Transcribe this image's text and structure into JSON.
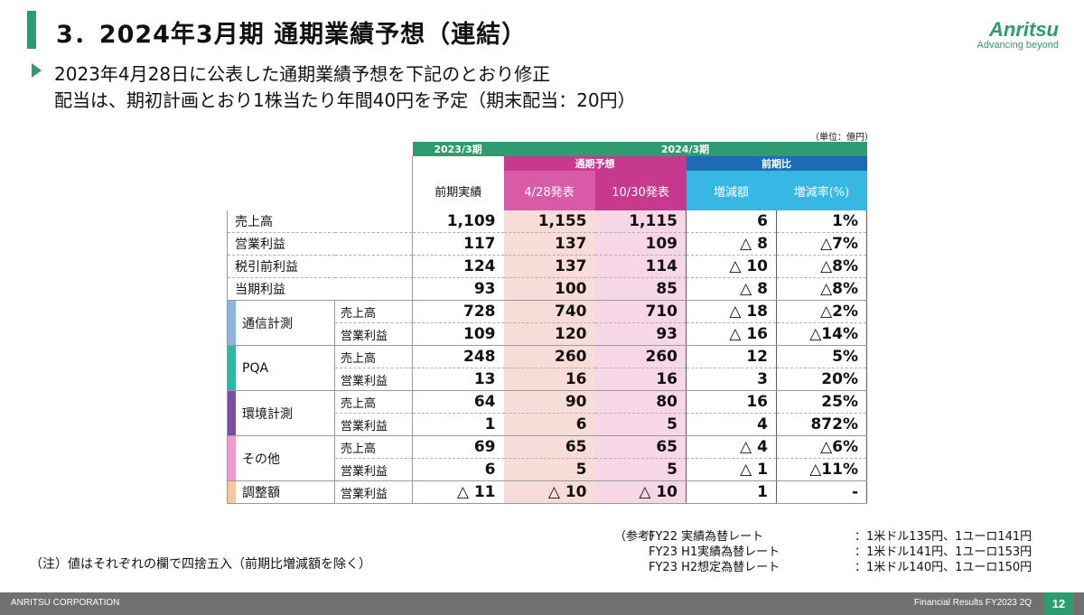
{
  "header": {
    "title": "3．2024年3月期  通期業績予想（連結）",
    "logo_name": "Anritsu",
    "logo_tagline": "Advancing beyond"
  },
  "intro": {
    "line1": "2023年4月28日に公表した通期業績予想を下記のとおり修正",
    "line2": "配当は、期初計画とおり1株当たり年間40円を予定（期末配当：20円）"
  },
  "table": {
    "unit": "（単位：億円）",
    "header": {
      "fy2023": "2023/3期",
      "fy2024": "2024/3期",
      "forecast": "通期予想",
      "yoy": "前期比",
      "prev_actual": "前期実績",
      "apr28": "4/28発表",
      "oct30": "10/30発表",
      "change_amt": "増減額",
      "change_pct": "増減率(%)"
    },
    "rows": [
      {
        "label": "売上高",
        "prev": "1,109",
        "apr": "1,155",
        "oct": "1,115",
        "chg": "6",
        "pct": "1%"
      },
      {
        "label": "営業利益",
        "prev": "117",
        "apr": "137",
        "oct": "109",
        "chg": "△ 8",
        "pct": "△7%"
      },
      {
        "label": "税引前利益",
        "prev": "124",
        "apr": "137",
        "oct": "114",
        "chg": "△ 10",
        "pct": "△8%"
      },
      {
        "label": "当期利益",
        "prev": "93",
        "apr": "100",
        "oct": "85",
        "chg": "△ 8",
        "pct": "△8%"
      }
    ],
    "segments": [
      {
        "name": "通信計測",
        "color": "#8eb4e3",
        "rows": [
          {
            "sub": "売上高",
            "prev": "728",
            "apr": "740",
            "oct": "710",
            "chg": "△ 18",
            "pct": "△2%"
          },
          {
            "sub": "営業利益",
            "prev": "109",
            "apr": "120",
            "oct": "93",
            "chg": "△ 16",
            "pct": "△14%"
          }
        ]
      },
      {
        "name": "PQA",
        "color": "#2fb7a4",
        "rows": [
          {
            "sub": "売上高",
            "prev": "248",
            "apr": "260",
            "oct": "260",
            "chg": "12",
            "pct": "5%"
          },
          {
            "sub": "営業利益",
            "prev": "13",
            "apr": "16",
            "oct": "16",
            "chg": "3",
            "pct": "20%"
          }
        ]
      },
      {
        "name": "環境計測",
        "color": "#7b4ea3",
        "rows": [
          {
            "sub": "売上高",
            "prev": "64",
            "apr": "90",
            "oct": "80",
            "chg": "16",
            "pct": "25%"
          },
          {
            "sub": "営業利益",
            "prev": "1",
            "apr": "6",
            "oct": "5",
            "chg": "4",
            "pct": "872%"
          }
        ]
      },
      {
        "name": "その他",
        "color": "#f19ad0",
        "rows": [
          {
            "sub": "売上高",
            "prev": "69",
            "apr": "65",
            "oct": "65",
            "chg": "△ 4",
            "pct": "△6%"
          },
          {
            "sub": "営業利益",
            "prev": "6",
            "apr": "5",
            "oct": "5",
            "chg": "△ 1",
            "pct": "△11%"
          }
        ]
      },
      {
        "name": "調整額",
        "color": "#f6c99b",
        "rows": [
          {
            "sub": "営業利益",
            "prev": "△ 11",
            "apr": "△ 10",
            "oct": "△ 10",
            "chg": "1",
            "pct": "-"
          }
        ]
      }
    ]
  },
  "notes": {
    "rounding": "（注）値はそれぞれの欄で四捨五入（前期比増減額を除く）",
    "ref_prefix": "（参考）",
    "rates": [
      {
        "label": "FY22 実績為替レート",
        "value": "：1米ドル135円、1ユーロ141円"
      },
      {
        "label": "FY23 H1実績為替レート",
        "value": "：1米ドル141円、1ユーロ153円"
      },
      {
        "label": "FY23 H2想定為替レート",
        "value": "：1米ドル140円、1ユーロ150円"
      }
    ]
  },
  "footer": {
    "company": "ANRITSU CORPORATION",
    "doc": "Financial Results FY2023 2Q",
    "page": "12"
  }
}
